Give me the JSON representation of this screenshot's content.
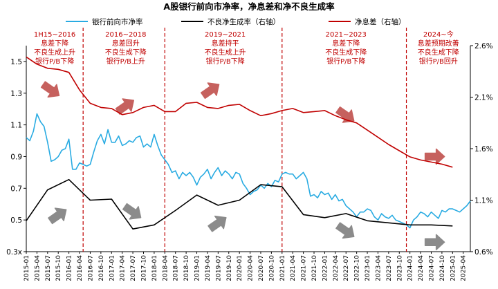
{
  "chart_data": {
    "type": "line",
    "title": "A股银行前向市净率，净息差和净不良生成率",
    "legend_position": "top",
    "grid": false,
    "x_ticks": [
      "2015-01",
      "2015-04",
      "2015-07",
      "2015-10",
      "2016-01",
      "2016-04",
      "2016-07",
      "2016-10",
      "2017-01",
      "2017-04",
      "2017-07",
      "2017-10",
      "2018-01",
      "2018-04",
      "2018-07",
      "2018-10",
      "2019-01",
      "2019-04",
      "2019-07",
      "2019-10",
      "2020-01",
      "2020-04",
      "2020-07",
      "2020-10",
      "2021-01",
      "2021-04",
      "2021-07",
      "2021-10",
      "2022-01",
      "2022-04",
      "2022-07",
      "2022-10",
      "2023-01",
      "2023-04",
      "2023-07",
      "2023-10",
      "2024-01",
      "2024-04",
      "2024-07",
      "2024-10",
      "2025-01",
      "2025-04"
    ],
    "x_range": [
      "2015-01",
      "2025-06"
    ],
    "y_left": {
      "ticks": [
        "0.3x",
        "0.5",
        "0.7",
        "0.9",
        "1.1",
        "1.3",
        "1.5"
      ],
      "min": 0.3,
      "max": 1.6
    },
    "y_right": {
      "ticks": [
        "0.6%",
        "1.1%",
        "1.6%",
        "2.1%",
        "2.6%"
      ],
      "min": 0.6,
      "max": 2.6
    },
    "series": [
      {
        "name": "银行前向市净率",
        "axis": "left",
        "color": "#29abe2",
        "points": [
          [
            "2015-01",
            1.02
          ],
          [
            "2015-02",
            1.0
          ],
          [
            "2015-03",
            1.06
          ],
          [
            "2015-04",
            1.17
          ],
          [
            "2015-05",
            1.12
          ],
          [
            "2015-06",
            1.09
          ],
          [
            "2015-07",
            0.99
          ],
          [
            "2015-08",
            0.87
          ],
          [
            "2015-09",
            0.88
          ],
          [
            "2015-10",
            0.9
          ],
          [
            "2015-11",
            0.94
          ],
          [
            "2015-12",
            0.95
          ],
          [
            "2016-01",
            1.01
          ],
          [
            "2016-02",
            0.82
          ],
          [
            "2016-03",
            0.82
          ],
          [
            "2016-04",
            0.86
          ],
          [
            "2016-05",
            0.85
          ],
          [
            "2016-06",
            0.84
          ],
          [
            "2016-07",
            0.85
          ],
          [
            "2016-08",
            0.93
          ],
          [
            "2016-09",
            1.0
          ],
          [
            "2016-10",
            1.04
          ],
          [
            "2016-11",
            0.98
          ],
          [
            "2016-12",
            1.07
          ],
          [
            "2017-01",
            0.99
          ],
          [
            "2017-02",
            0.99
          ],
          [
            "2017-03",
            1.03
          ],
          [
            "2017-04",
            0.97
          ],
          [
            "2017-05",
            0.98
          ],
          [
            "2017-06",
            1.0
          ],
          [
            "2017-07",
            0.99
          ],
          [
            "2017-08",
            1.02
          ],
          [
            "2017-09",
            1.03
          ],
          [
            "2017-10",
            0.96
          ],
          [
            "2017-11",
            0.98
          ],
          [
            "2017-12",
            0.96
          ],
          [
            "2018-01",
            1.04
          ],
          [
            "2018-02",
            0.97
          ],
          [
            "2018-03",
            0.91
          ],
          [
            "2018-04",
            0.88
          ],
          [
            "2018-05",
            0.85
          ],
          [
            "2018-06",
            0.8
          ],
          [
            "2018-07",
            0.81
          ],
          [
            "2018-08",
            0.76
          ],
          [
            "2018-09",
            0.8
          ],
          [
            "2018-10",
            0.78
          ],
          [
            "2018-11",
            0.8
          ],
          [
            "2018-12",
            0.77
          ],
          [
            "2019-01",
            0.72
          ],
          [
            "2019-02",
            0.77
          ],
          [
            "2019-03",
            0.79
          ],
          [
            "2019-04",
            0.82
          ],
          [
            "2019-05",
            0.76
          ],
          [
            "2019-06",
            0.8
          ],
          [
            "2019-07",
            0.83
          ],
          [
            "2019-08",
            0.78
          ],
          [
            "2019-09",
            0.81
          ],
          [
            "2019-10",
            0.79
          ],
          [
            "2019-11",
            0.76
          ],
          [
            "2019-12",
            0.8
          ],
          [
            "2020-01",
            0.79
          ],
          [
            "2020-02",
            0.73
          ],
          [
            "2020-03",
            0.7
          ],
          [
            "2020-04",
            0.66
          ],
          [
            "2020-05",
            0.68
          ],
          [
            "2020-06",
            0.69
          ],
          [
            "2020-07",
            0.72
          ],
          [
            "2020-08",
            0.7
          ],
          [
            "2020-09",
            0.73
          ],
          [
            "2020-10",
            0.71
          ],
          [
            "2020-11",
            0.75
          ],
          [
            "2020-12",
            0.74
          ],
          [
            "2021-01",
            0.79
          ],
          [
            "2021-02",
            0.8
          ],
          [
            "2021-03",
            0.79
          ],
          [
            "2021-04",
            0.79
          ],
          [
            "2021-05",
            0.76
          ],
          [
            "2021-06",
            0.78
          ],
          [
            "2021-07",
            0.8
          ],
          [
            "2021-08",
            0.76
          ],
          [
            "2021-09",
            0.65
          ],
          [
            "2021-10",
            0.66
          ],
          [
            "2021-11",
            0.64
          ],
          [
            "2021-12",
            0.68
          ],
          [
            "2022-01",
            0.66
          ],
          [
            "2022-02",
            0.67
          ],
          [
            "2022-03",
            0.63
          ],
          [
            "2022-04",
            0.66
          ],
          [
            "2022-05",
            0.62
          ],
          [
            "2022-06",
            0.63
          ],
          [
            "2022-07",
            0.59
          ],
          [
            "2022-08",
            0.57
          ],
          [
            "2022-09",
            0.55
          ],
          [
            "2022-10",
            0.52
          ],
          [
            "2022-11",
            0.55
          ],
          [
            "2022-12",
            0.55
          ],
          [
            "2023-01",
            0.57
          ],
          [
            "2023-02",
            0.56
          ],
          [
            "2023-03",
            0.52
          ],
          [
            "2023-04",
            0.5
          ],
          [
            "2023-05",
            0.54
          ],
          [
            "2023-06",
            0.52
          ],
          [
            "2023-07",
            0.51
          ],
          [
            "2023-08",
            0.53
          ],
          [
            "2023-09",
            0.5
          ],
          [
            "2023-10",
            0.49
          ],
          [
            "2023-11",
            0.48
          ],
          [
            "2023-12",
            0.47
          ],
          [
            "2024-01",
            0.45
          ],
          [
            "2024-02",
            0.5
          ],
          [
            "2024-03",
            0.52
          ],
          [
            "2024-04",
            0.55
          ],
          [
            "2024-05",
            0.54
          ],
          [
            "2024-06",
            0.52
          ],
          [
            "2024-07",
            0.55
          ],
          [
            "2024-08",
            0.53
          ],
          [
            "2024-09",
            0.51
          ],
          [
            "2024-10",
            0.56
          ],
          [
            "2024-11",
            0.55
          ],
          [
            "2024-12",
            0.57
          ],
          [
            "2025-01",
            0.57
          ],
          [
            "2025-02",
            0.56
          ],
          [
            "2025-03",
            0.55
          ],
          [
            "2025-04",
            0.57
          ],
          [
            "2025-05",
            0.59
          ],
          [
            "2025-06",
            0.62
          ]
        ]
      },
      {
        "name": "不良净生成率（右轴）",
        "axis": "right",
        "color": "#000000",
        "points": [
          [
            "2015-01",
            0.9
          ],
          [
            "2015-07",
            1.2
          ],
          [
            "2016-01",
            1.3
          ],
          [
            "2016-07",
            1.1
          ],
          [
            "2017-01",
            1.11
          ],
          [
            "2017-07",
            0.82
          ],
          [
            "2018-01",
            0.86
          ],
          [
            "2018-07",
            1.0
          ],
          [
            "2019-01",
            1.15
          ],
          [
            "2019-07",
            1.05
          ],
          [
            "2020-01",
            1.1
          ],
          [
            "2020-07",
            1.25
          ],
          [
            "2021-01",
            1.23
          ],
          [
            "2021-07",
            0.96
          ],
          [
            "2022-01",
            0.93
          ],
          [
            "2022-07",
            0.97
          ],
          [
            "2023-01",
            0.9
          ],
          [
            "2023-07",
            0.88
          ],
          [
            "2024-01",
            0.86
          ],
          [
            "2024-07",
            0.86
          ],
          [
            "2025-01",
            0.85
          ]
        ]
      },
      {
        "name": "净息差（右轴）",
        "axis": "right",
        "color": "#c00000",
        "points": [
          [
            "2015-01",
            2.49
          ],
          [
            "2015-04",
            2.42
          ],
          [
            "2015-07",
            2.38
          ],
          [
            "2015-10",
            2.37
          ],
          [
            "2016-01",
            2.34
          ],
          [
            "2016-04",
            2.17
          ],
          [
            "2016-07",
            2.04
          ],
          [
            "2016-10",
            2.0
          ],
          [
            "2017-01",
            1.99
          ],
          [
            "2017-04",
            1.93
          ],
          [
            "2017-07",
            1.95
          ],
          [
            "2017-10",
            2.0
          ],
          [
            "2018-01",
            2.02
          ],
          [
            "2018-04",
            1.96
          ],
          [
            "2018-07",
            1.96
          ],
          [
            "2018-10",
            2.04
          ],
          [
            "2019-01",
            2.05
          ],
          [
            "2019-04",
            2.0
          ],
          [
            "2019-07",
            1.99
          ],
          [
            "2019-10",
            2.02
          ],
          [
            "2020-01",
            2.03
          ],
          [
            "2020-04",
            1.97
          ],
          [
            "2020-07",
            1.92
          ],
          [
            "2020-10",
            1.94
          ],
          [
            "2021-01",
            1.97
          ],
          [
            "2021-04",
            1.99
          ],
          [
            "2021-07",
            1.95
          ],
          [
            "2021-10",
            1.96
          ],
          [
            "2022-01",
            1.97
          ],
          [
            "2022-04",
            1.92
          ],
          [
            "2022-07",
            1.88
          ],
          [
            "2022-10",
            1.85
          ],
          [
            "2023-01",
            1.78
          ],
          [
            "2023-04",
            1.71
          ],
          [
            "2023-07",
            1.64
          ],
          [
            "2023-10",
            1.58
          ],
          [
            "2024-01",
            1.52
          ],
          [
            "2024-04",
            1.49
          ],
          [
            "2024-07",
            1.47
          ],
          [
            "2024-10",
            1.45
          ],
          [
            "2025-01",
            1.42
          ]
        ]
      }
    ],
    "period_dividers": [
      "2016-05",
      "2018-04",
      "2021-01",
      "2023-12"
    ],
    "annotations": [
      {
        "lines": [
          "1H15~2016",
          "息差下降",
          "不良生成上升",
          "银行P/B下降"
        ],
        "at": "2015-09"
      },
      {
        "lines": [
          "2016~2018",
          "息差回升",
          "不良生成下降",
          "银行P/B上升"
        ],
        "at": "2017-05"
      },
      {
        "lines": [
          "2019~2021",
          "息差持平",
          "不良生成上升",
          "银行P/B下降"
        ],
        "at": "2019-09"
      },
      {
        "lines": [
          "2021~2023",
          "息差下降",
          "不良生成下降",
          "银行P/B下降"
        ],
        "at": "2022-07"
      },
      {
        "lines": [
          "2024~今",
          "息差预期改善",
          "不良生成下降",
          "银行P/B回升"
        ],
        "at": "2024-09"
      }
    ],
    "arrows": [
      {
        "color": "#c0504d",
        "dir": "down",
        "at": "2015-08",
        "level": 1.32
      },
      {
        "color": "#c0504d",
        "dir": "up",
        "at": "2017-05",
        "level": 1.22
      },
      {
        "color": "#c0504d",
        "dir": "up",
        "at": "2019-05",
        "level": 1.32
      },
      {
        "color": "#c0504d",
        "dir": "down",
        "at": "2022-07",
        "level": 1.16
      },
      {
        "color": "#c0504d",
        "dir": "flat",
        "at": "2024-08",
        "level": 0.9
      },
      {
        "color": "#7f7f7f",
        "dir": "up",
        "at": "2015-10",
        "level": 0.53
      },
      {
        "color": "#7f7f7f",
        "dir": "down",
        "at": "2017-07",
        "level": 0.55
      },
      {
        "color": "#7f7f7f",
        "dir": "up",
        "at": "2019-07",
        "level": 0.48
      },
      {
        "color": "#7f7f7f",
        "dir": "down",
        "at": "2022-07",
        "level": 0.43
      },
      {
        "color": "#7f7f7f",
        "dir": "flat",
        "at": "2024-08",
        "level": 0.36
      }
    ]
  }
}
